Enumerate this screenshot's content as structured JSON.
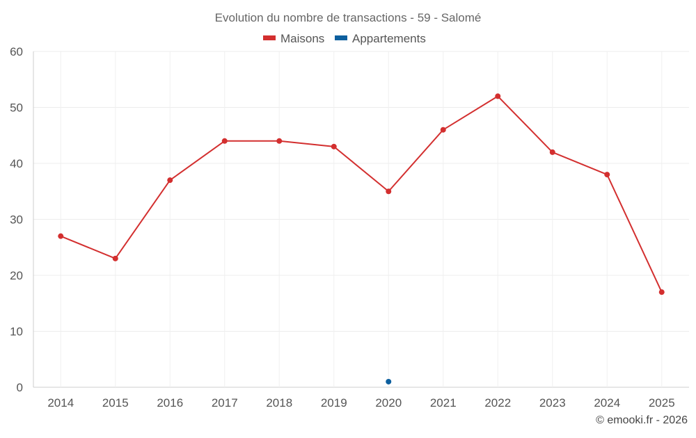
{
  "chart_data": {
    "type": "line",
    "title": "Evolution du nombre de transactions - 59 - Salomé",
    "categories": [
      "2014",
      "2015",
      "2016",
      "2017",
      "2018",
      "2019",
      "2020",
      "2021",
      "2022",
      "2023",
      "2024",
      "2025"
    ],
    "series": [
      {
        "name": "Maisons",
        "color": "#d32f2f",
        "values": [
          27,
          23,
          37,
          44,
          44,
          43,
          35,
          46,
          52,
          42,
          38,
          17
        ]
      },
      {
        "name": "Appartements",
        "color": "#0d5f9e",
        "values": [
          null,
          null,
          null,
          null,
          null,
          null,
          1,
          null,
          null,
          null,
          null,
          null
        ]
      }
    ],
    "ylim": [
      0,
      60
    ],
    "yticks": [
      0,
      10,
      20,
      30,
      40,
      50,
      60
    ],
    "grid": true,
    "legend_position": "top-center",
    "xlabel": "",
    "ylabel": ""
  },
  "credit": "© emooki.fr - 2026"
}
